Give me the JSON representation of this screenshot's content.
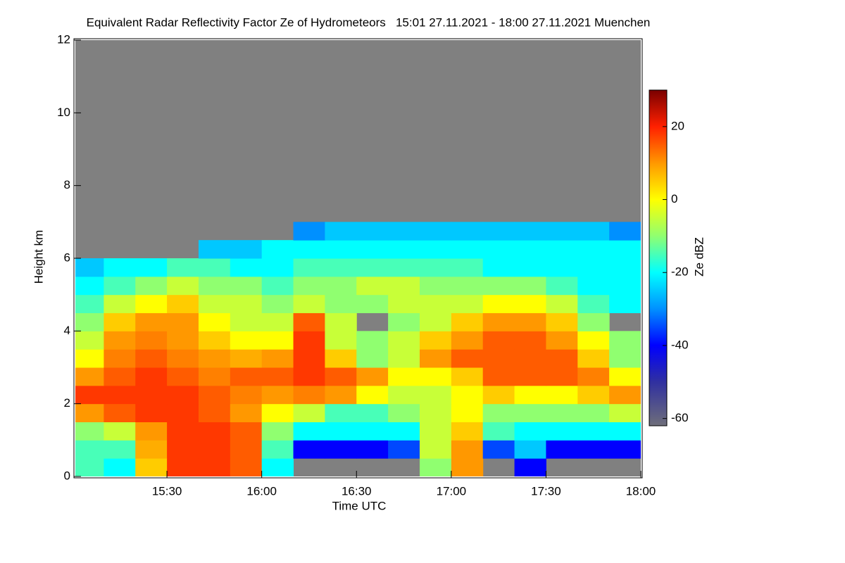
{
  "chart_data": {
    "type": "heatmap",
    "title": "Equivalent Radar Reflectivity Factor Ze of Hydrometeors   15:01 27.11.2021 - 18:00 27.11.2021 Muenchen",
    "x_label": "Time UTC",
    "y_label": "Height km",
    "colorbar_label": "Ze dBZ",
    "x": [
      905,
      915,
      925,
      935,
      945,
      955,
      965,
      975,
      985,
      995,
      1005,
      1015,
      1025,
      1035,
      1045,
      1055,
      1065,
      1075
    ],
    "y": [
      0.25,
      0.75,
      1.25,
      1.75,
      2.25,
      2.75,
      3.25,
      3.75,
      4.25,
      4.75,
      5.25,
      5.75,
      6.25,
      6.75
    ],
    "z": [
      [
        -15,
        -20,
        5,
        18,
        18,
        15,
        -20,
        null,
        null,
        null,
        null,
        -10,
        10,
        null,
        -40,
        null,
        null,
        null
      ],
      [
        -15,
        -15,
        8,
        18,
        18,
        15,
        -15,
        -40,
        -40,
        -40,
        -35,
        -5,
        10,
        -35,
        -25,
        -40,
        -40,
        -40
      ],
      [
        -10,
        -5,
        10,
        18,
        18,
        15,
        -10,
        -20,
        -20,
        -20,
        -20,
        -5,
        5,
        -15,
        -20,
        -20,
        -20,
        -20
      ],
      [
        10,
        15,
        18,
        18,
        15,
        10,
        0,
        -5,
        -15,
        -15,
        -10,
        -5,
        0,
        -10,
        -10,
        -10,
        -10,
        -5
      ],
      [
        18,
        18,
        18,
        18,
        15,
        12,
        10,
        12,
        10,
        0,
        -5,
        -5,
        0,
        5,
        0,
        0,
        5,
        10
      ],
      [
        10,
        15,
        18,
        15,
        12,
        15,
        15,
        18,
        15,
        10,
        0,
        0,
        5,
        15,
        15,
        15,
        12,
        0
      ],
      [
        0,
        12,
        15,
        12,
        10,
        8,
        10,
        18,
        5,
        -10,
        -5,
        10,
        15,
        15,
        15,
        15,
        5,
        -10
      ],
      [
        -5,
        10,
        12,
        10,
        5,
        0,
        0,
        18,
        -5,
        -10,
        -5,
        5,
        10,
        15,
        15,
        10,
        0,
        -10
      ],
      [
        -10,
        5,
        10,
        10,
        0,
        -5,
        -5,
        15,
        -5,
        null,
        -10,
        -5,
        5,
        10,
        10,
        5,
        -10,
        null
      ],
      [
        -15,
        -5,
        0,
        5,
        -5,
        -5,
        -10,
        -5,
        -10,
        -10,
        -5,
        -5,
        -5,
        0,
        0,
        -5,
        -15,
        -20
      ],
      [
        -20,
        -15,
        -10,
        -5,
        -10,
        -10,
        -15,
        -10,
        -10,
        -5,
        -5,
        -10,
        -10,
        -10,
        -10,
        -15,
        -20,
        -20
      ],
      [
        -25,
        -20,
        -20,
        -15,
        -15,
        -20,
        -20,
        -15,
        -15,
        -15,
        -15,
        -15,
        -15,
        -20,
        -20,
        -20,
        -20,
        -20
      ],
      [
        null,
        null,
        null,
        null,
        -25,
        -25,
        -20,
        -20,
        -20,
        -20,
        -20,
        -20,
        -20,
        -20,
        -20,
        -20,
        -20,
        -20
      ],
      [
        null,
        null,
        null,
        null,
        null,
        null,
        null,
        -30,
        -25,
        -25,
        -25,
        -25,
        -25,
        -25,
        -25,
        -25,
        -25,
        -30
      ]
    ],
    "xlim": [
      901,
      1080
    ],
    "xticks": [
      {
        "value": 930,
        "label": "15:30"
      },
      {
        "value": 960,
        "label": "16:00"
      },
      {
        "value": 990,
        "label": "16:30"
      },
      {
        "value": 1020,
        "label": "17:00"
      },
      {
        "value": 1050,
        "label": "17:30"
      },
      {
        "value": 1080,
        "label": "18:00"
      }
    ],
    "ylim": [
      0,
      12
    ],
    "yticks": [
      0,
      2,
      4,
      6,
      8,
      10,
      12
    ],
    "clim": [
      -62,
      30
    ],
    "cticks": [
      20,
      0,
      -20,
      -40,
      -60
    ],
    "colorscale": [
      [
        -62,
        "#6e6e7a"
      ],
      [
        -50,
        "#3030a0"
      ],
      [
        -40,
        "#0000ff"
      ],
      [
        -30,
        "#0090ff"
      ],
      [
        -20,
        "#00ffff"
      ],
      [
        -10,
        "#90ff70"
      ],
      [
        0,
        "#ffff00"
      ],
      [
        10,
        "#ff9800"
      ],
      [
        20,
        "#ff2000"
      ],
      [
        30,
        "#7a0000"
      ]
    ],
    "no_data_color": "#808080"
  }
}
